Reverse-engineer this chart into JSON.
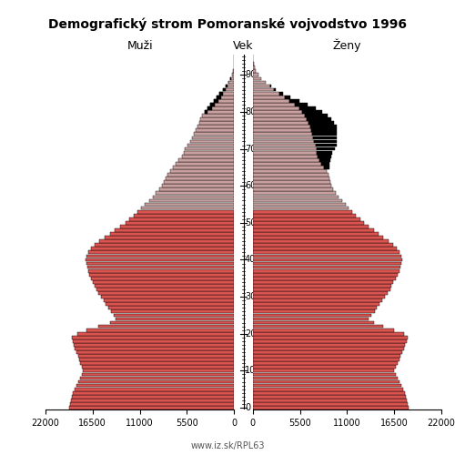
{
  "title": "Demografický strom Pomoranské vojvodstvo 1996",
  "col_left": "Muži",
  "col_right": "Ženy",
  "col_center": "Vek",
  "footer": "www.iz.sk/RPL63",
  "xlim": 22000,
  "xticks": [
    0,
    5500,
    11000,
    16500,
    22000
  ],
  "bar_color_young": "#d9534f",
  "bar_color_old": "#c9a0a0",
  "bar_edge_color": "#000000",
  "age_color_threshold": 54,
  "males": [
    19200,
    19100,
    19000,
    18900,
    18800,
    18600,
    18400,
    18200,
    18000,
    17800,
    17600,
    17800,
    18000,
    18100,
    18200,
    18400,
    18600,
    18700,
    18800,
    18900,
    18300,
    17200,
    15800,
    14500,
    13800,
    14000,
    14400,
    14700,
    15000,
    15200,
    15500,
    15800,
    16100,
    16300,
    16500,
    16700,
    16900,
    17000,
    17100,
    17200,
    17300,
    17200,
    17000,
    16700,
    16300,
    15700,
    15100,
    14500,
    13900,
    13300,
    12700,
    12200,
    11700,
    11300,
    10900,
    10400,
    9900,
    9500,
    9100,
    8700,
    8400,
    8200,
    8000,
    7800,
    7500,
    7100,
    6800,
    6500,
    6100,
    5900,
    5700,
    5400,
    5100,
    4900,
    4700,
    4500,
    4300,
    4100,
    3900,
    3700,
    3400,
    3100,
    2800,
    2400,
    2000,
    1700,
    1300,
    1000,
    700,
    400,
    250,
    130,
    60,
    30,
    10,
    5
  ],
  "females": [
    18200,
    18100,
    18000,
    17900,
    17700,
    17500,
    17300,
    17100,
    16900,
    16700,
    16500,
    16700,
    16900,
    17100,
    17200,
    17400,
    17600,
    17800,
    18000,
    18100,
    17600,
    16500,
    15200,
    14100,
    13500,
    13800,
    14200,
    14500,
    14800,
    15100,
    15400,
    15700,
    16000,
    16200,
    16400,
    16700,
    16900,
    17100,
    17200,
    17300,
    17400,
    17300,
    17100,
    16800,
    16400,
    15800,
    15200,
    14700,
    14100,
    13500,
    13000,
    12500,
    12000,
    11600,
    11200,
    10800,
    10400,
    10000,
    9700,
    9400,
    9200,
    9000,
    8900,
    8800,
    8600,
    8300,
    8000,
    7800,
    7600,
    7500,
    7400,
    7300,
    7100,
    7000,
    6900,
    6800,
    6700,
    6500,
    6300,
    6100,
    5800,
    5400,
    4900,
    4300,
    3700,
    3100,
    2500,
    2000,
    1500,
    1000,
    600,
    350,
    180,
    80,
    30,
    10
  ],
  "females_black": [
    0,
    0,
    0,
    0,
    0,
    0,
    0,
    0,
    0,
    0,
    0,
    0,
    0,
    0,
    0,
    0,
    0,
    0,
    0,
    0,
    0,
    0,
    0,
    0,
    0,
    0,
    0,
    0,
    0,
    0,
    0,
    0,
    0,
    0,
    0,
    0,
    0,
    0,
    0,
    0,
    0,
    0,
    0,
    0,
    0,
    0,
    0,
    0,
    0,
    0,
    0,
    0,
    0,
    0,
    0,
    0,
    0,
    0,
    0,
    0,
    0,
    0,
    0,
    0,
    0,
    600,
    900,
    1200,
    1500,
    1800,
    2200,
    2500,
    2700,
    2800,
    2900,
    3000,
    3100,
    3000,
    2800,
    2600,
    2300,
    1900,
    1500,
    1100,
    700,
    400,
    200,
    100,
    0,
    0,
    0,
    0,
    0,
    0,
    0,
    0
  ],
  "males_black": [
    0,
    0,
    0,
    0,
    0,
    0,
    0,
    0,
    0,
    0,
    0,
    0,
    0,
    0,
    0,
    0,
    0,
    0,
    0,
    0,
    0,
    0,
    0,
    0,
    0,
    0,
    0,
    0,
    0,
    0,
    0,
    0,
    0,
    0,
    0,
    0,
    0,
    0,
    0,
    0,
    0,
    0,
    0,
    0,
    0,
    0,
    0,
    0,
    0,
    0,
    0,
    0,
    0,
    0,
    0,
    0,
    0,
    0,
    0,
    0,
    0,
    0,
    0,
    0,
    0,
    0,
    0,
    0,
    0,
    0,
    0,
    0,
    0,
    0,
    0,
    0,
    0,
    0,
    0,
    0,
    300,
    500,
    600,
    600,
    500,
    400,
    300,
    200,
    100,
    50,
    0,
    0,
    0,
    0,
    0,
    0
  ]
}
